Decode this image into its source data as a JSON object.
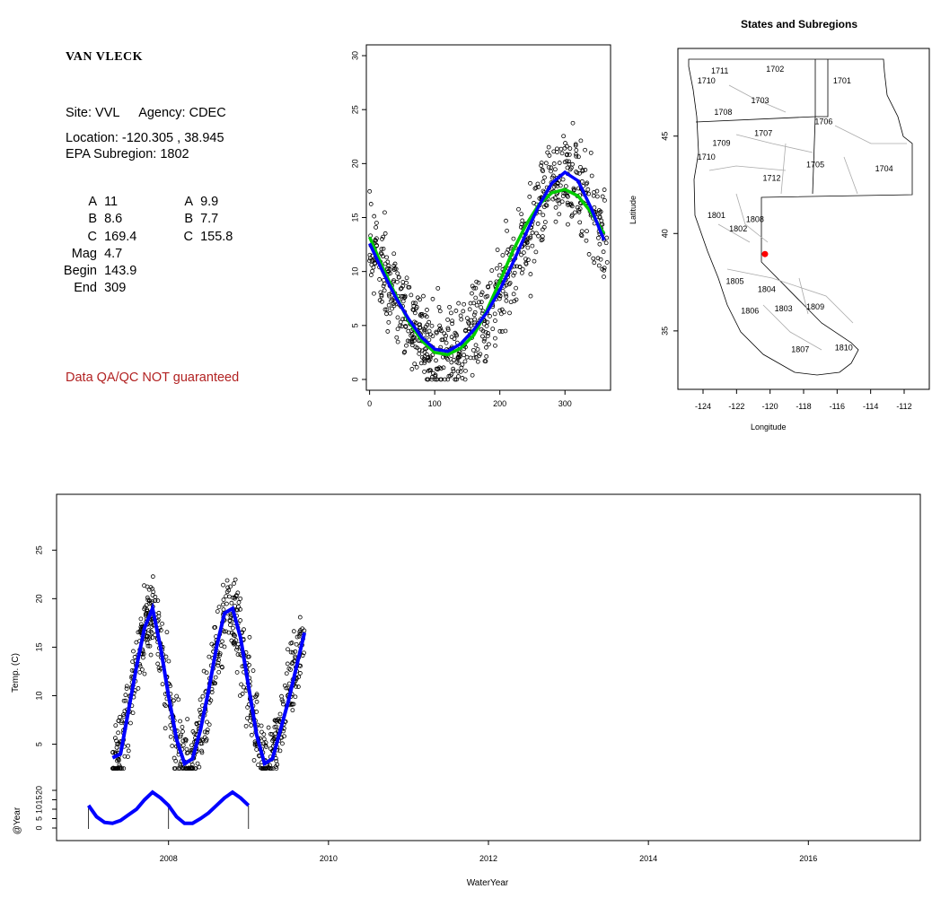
{
  "site": {
    "name": "VAN VLECK",
    "site_label": "Site: VVL",
    "agency_label": "Agency: CDEC",
    "location_label": "Location: -120.305 , 38.945",
    "subregion_label": "EPA Subregion: 1802",
    "qa_note": "Data QA/QC NOT guaranteed"
  },
  "params": {
    "left": [
      {
        "key": "A",
        "value": "11"
      },
      {
        "key": "B",
        "value": "8.6"
      },
      {
        "key": "C",
        "value": "169.4"
      },
      {
        "key": "Mag",
        "value": "4.7"
      },
      {
        "key": "Begin",
        "value": "143.9"
      },
      {
        "key": "End",
        "value": "309"
      }
    ],
    "right": [
      {
        "key": "A",
        "value": "9.9"
      },
      {
        "key": "B",
        "value": "7.7"
      },
      {
        "key": "C",
        "value": "155.8"
      }
    ]
  },
  "chart_data": [
    {
      "type": "scatter",
      "name": "seasonal",
      "title": "",
      "xlabel": "",
      "ylabel": "",
      "xlim": [
        -5,
        370
      ],
      "ylim": [
        -1,
        31
      ],
      "xticks": [
        "0",
        "100",
        "200",
        "300"
      ],
      "yticks": [
        "0",
        "5",
        "10",
        "15",
        "20",
        "25",
        "30"
      ],
      "curves": [
        {
          "color": "#0000ff",
          "x": [
            0,
            20,
            40,
            60,
            80,
            100,
            120,
            140,
            160,
            180,
            200,
            220,
            240,
            260,
            280,
            300,
            320,
            340,
            360
          ],
          "y": [
            12.6,
            10.0,
            7.6,
            5.6,
            3.9,
            2.8,
            2.6,
            3.3,
            4.6,
            6.2,
            8.3,
            10.8,
            13.5,
            16.1,
            18.2,
            19.2,
            18.4,
            15.9,
            12.9
          ]
        },
        {
          "color": "#00cc00",
          "x": [
            0,
            20,
            40,
            60,
            80,
            100,
            120,
            140,
            160,
            180,
            200,
            220,
            240,
            260,
            280,
            300,
            320,
            340,
            360
          ],
          "y": [
            13.2,
            10.4,
            7.8,
            5.4,
            3.6,
            2.5,
            2.3,
            2.9,
            4.1,
            6.4,
            9.1,
            11.9,
            14.3,
            16.2,
            17.3,
            17.6,
            17.0,
            15.5,
            13.5
          ]
        }
      ],
      "scatter": {
        "count": 760,
        "noise_sd": 3.0
      }
    },
    {
      "type": "map",
      "name": "regions",
      "title": "States and Subregions",
      "xlabel": "Longitude",
      "ylabel": "Latitude",
      "xlim": [
        -125.5,
        -110.5
      ],
      "ylim": [
        32,
        49.5
      ],
      "xticks": [
        -124,
        -122,
        -120,
        -118,
        -116,
        -114,
        -112
      ],
      "yticks": [
        35,
        40,
        45
      ],
      "regions": [
        {
          "label": "1711",
          "lon": -123.0,
          "lat": 48.2
        },
        {
          "label": "1702",
          "lon": -119.7,
          "lat": 48.3
        },
        {
          "label": "1701",
          "lon": -115.7,
          "lat": 47.7
        },
        {
          "label": "1710",
          "lon": -123.8,
          "lat": 47.7
        },
        {
          "label": "1703",
          "lon": -120.6,
          "lat": 46.7
        },
        {
          "label": "1708",
          "lon": -122.8,
          "lat": 46.1
        },
        {
          "label": "1706",
          "lon": -116.8,
          "lat": 45.6
        },
        {
          "label": "1707",
          "lon": -120.4,
          "lat": 45.0
        },
        {
          "label": "1709",
          "lon": -122.9,
          "lat": 44.5
        },
        {
          "label": "1710",
          "lon": -123.8,
          "lat": 43.8
        },
        {
          "label": "1705",
          "lon": -117.3,
          "lat": 43.4
        },
        {
          "label": "1704",
          "lon": -113.2,
          "lat": 43.2
        },
        {
          "label": "1712",
          "lon": -119.9,
          "lat": 42.7
        },
        {
          "label": "1801",
          "lon": -123.2,
          "lat": 40.8
        },
        {
          "label": "1808",
          "lon": -120.9,
          "lat": 40.6
        },
        {
          "label": "1802",
          "lon": -121.9,
          "lat": 40.1
        },
        {
          "label": "1805",
          "lon": -122.1,
          "lat": 37.4
        },
        {
          "label": "1804",
          "lon": -120.2,
          "lat": 37.0
        },
        {
          "label": "1806",
          "lon": -121.2,
          "lat": 35.9
        },
        {
          "label": "1803",
          "lon": -119.2,
          "lat": 36.0
        },
        {
          "label": "1809",
          "lon": -117.3,
          "lat": 36.1
        },
        {
          "label": "1807",
          "lon": -118.2,
          "lat": 33.9
        },
        {
          "label": "1810",
          "lon": -115.6,
          "lat": 34.0
        }
      ],
      "site_point": {
        "lon": -120.305,
        "lat": 38.945,
        "color": "#ff0000"
      }
    },
    {
      "type": "line",
      "name": "timeseries",
      "title": "",
      "xlabel": "WaterYear",
      "ylabel": "Temp. (C)",
      "ylabel2": "@Year",
      "xlim": [
        2006.6,
        2017.4
      ],
      "ylim": [
        2,
        29
      ],
      "xticks": [
        "2008",
        "2010",
        "2012",
        "2014",
        "2016"
      ],
      "yticks": [
        "5",
        "10",
        "15",
        "20",
        "25"
      ],
      "yticks2": [
        "0",
        "5",
        "10",
        "15",
        "20"
      ],
      "temp_curve": {
        "color": "#0000ff",
        "x": [
          2007.3,
          2007.4,
          2007.5,
          2007.6,
          2007.7,
          2007.8,
          2007.9,
          2008.0,
          2008.1,
          2008.2,
          2008.3,
          2008.4,
          2008.5,
          2008.6,
          2008.7,
          2008.8,
          2008.9,
          2009.0,
          2009.1,
          2009.2,
          2009.3,
          2009.4,
          2009.5,
          2009.6,
          2009.7
        ],
        "y": [
          3.6,
          4.0,
          8.5,
          13.0,
          17.0,
          19.0,
          15.0,
          10.0,
          5.5,
          3.0,
          3.5,
          6.5,
          10.5,
          15.0,
          18.5,
          19.0,
          16.0,
          11.0,
          6.0,
          3.0,
          3.5,
          6.5,
          9.5,
          13.0,
          16.5
        ]
      },
      "annual_curve": {
        "color": "#0000ff",
        "x": [
          2007.0,
          2007.1,
          2007.2,
          2007.3,
          2007.4,
          2007.5,
          2007.6,
          2007.7,
          2007.8,
          2007.9,
          2008.0,
          2008.1,
          2008.2,
          2008.3,
          2008.4,
          2008.5,
          2008.6,
          2008.7,
          2008.8,
          2008.9,
          2009.0
        ],
        "y": [
          12,
          6,
          3,
          2.5,
          4,
          7,
          10,
          15,
          19,
          16,
          12,
          6,
          2.5,
          2.5,
          5,
          8,
          12,
          16,
          19,
          16,
          12
        ]
      },
      "scatter": {
        "count": 760,
        "noise_sd": 3.0
      }
    }
  ]
}
